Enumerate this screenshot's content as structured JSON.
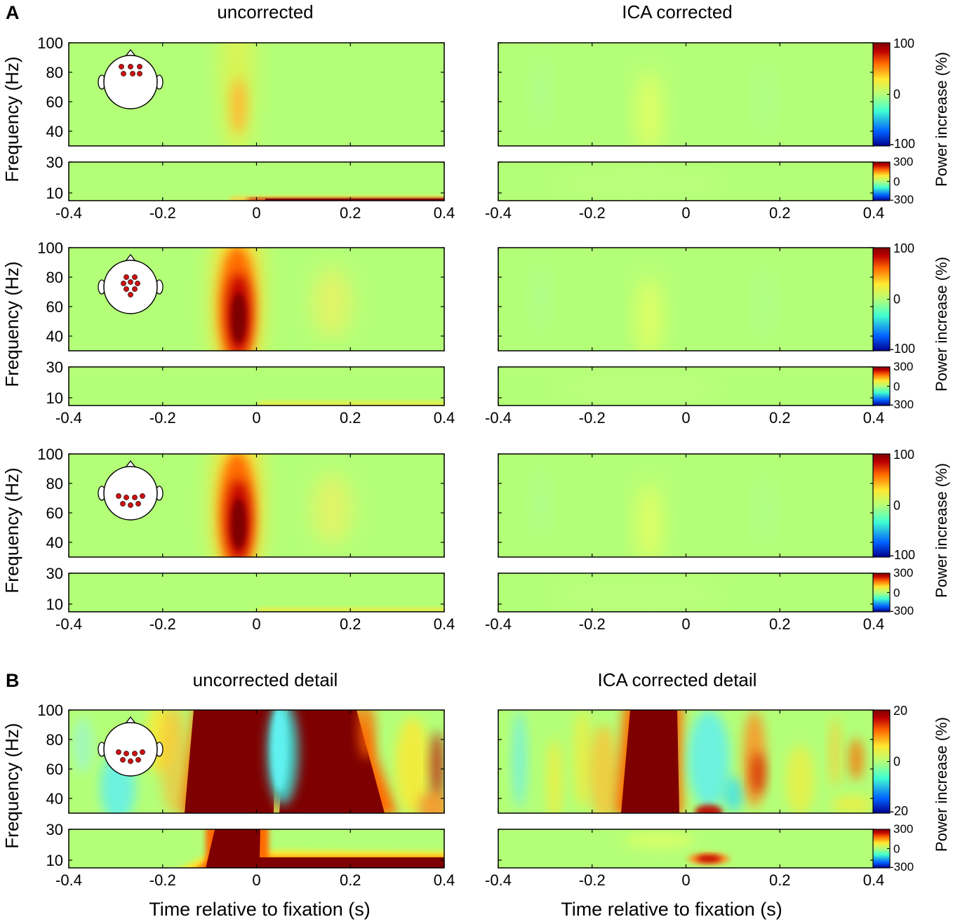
{
  "panel_labels": [
    "A",
    "B"
  ],
  "column_titles": {
    "A": [
      "uncorrected",
      "ICA corrected"
    ],
    "B": [
      "uncorrected detail",
      "ICA corrected detail"
    ]
  },
  "axis_labels": {
    "y": "Frequency (Hz)",
    "x": "Time relative to fixation (s)",
    "colorbar": "Power increase (%)"
  },
  "colors": {
    "background": "#b4ff78",
    "colormap": [
      "#00008f",
      "#0060ff",
      "#40ffd0",
      "#b4ff78",
      "#ffe830",
      "#ff6a00",
      "#bf0000",
      "#7f0000"
    ]
  },
  "chart_data": {
    "type": "heatmap",
    "x_ticks": [
      "-0.4",
      "-0.2",
      "0",
      "0.2",
      "0.4"
    ],
    "x_range": [
      -0.4,
      0.4
    ],
    "high_freq": {
      "y_ticks": [
        "40",
        "60",
        "80",
        "100"
      ],
      "y_range": [
        30,
        100
      ]
    },
    "low_freq": {
      "y_ticks": [
        "10",
        "30"
      ],
      "y_range": [
        5,
        30
      ]
    },
    "rows": [
      {
        "label": "frontal",
        "panel": "A",
        "electrodes": "frontal",
        "colorbar_high": [
          "100",
          "0",
          "-100"
        ],
        "colorbar_low": [
          "300",
          "0",
          "-300"
        ]
      },
      {
        "label": "central",
        "panel": "A",
        "electrodes": "central",
        "colorbar_high": [
          "100",
          "0",
          "-100"
        ],
        "colorbar_low": [
          "300",
          "0",
          "-300"
        ]
      },
      {
        "label": "occipital",
        "panel": "A",
        "electrodes": "occipital",
        "colorbar_high": [
          "100",
          "0",
          "-100"
        ],
        "colorbar_low": [
          "300",
          "0",
          "-300"
        ]
      },
      {
        "label": "occipital detail",
        "panel": "B",
        "electrodes": "occipital",
        "colorbar_high": [
          "20",
          "0",
          "-20"
        ],
        "colorbar_low": [
          "300",
          "0",
          "-300"
        ]
      }
    ]
  }
}
